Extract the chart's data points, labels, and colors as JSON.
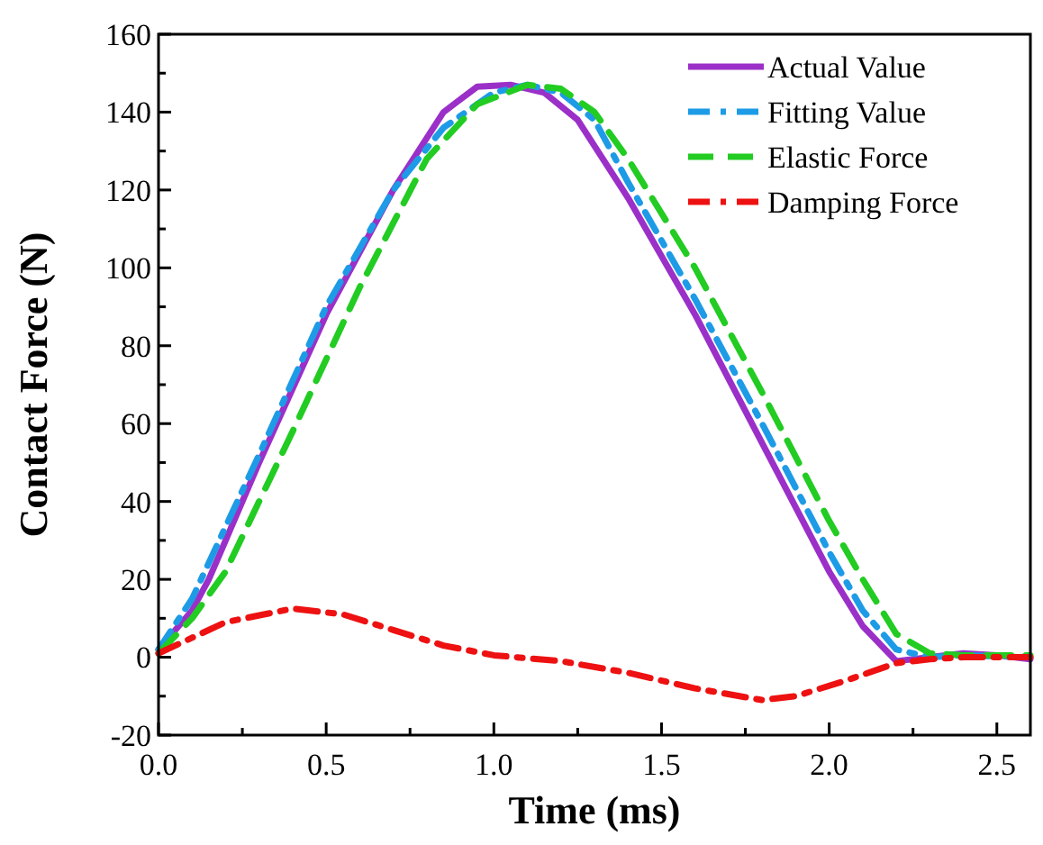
{
  "chart_data": {
    "type": "line",
    "xlabel": "Time (ms)",
    "ylabel": "Contact Force (N)",
    "xlim": [
      0,
      2.6
    ],
    "ylim": [
      -20,
      160
    ],
    "xticks": [
      {
        "value": 0,
        "label": "0.0"
      },
      {
        "value": 0.25,
        "label": null
      },
      {
        "value": 0.5,
        "label": "0.5"
      },
      {
        "value": 0.75,
        "label": null
      },
      {
        "value": 1,
        "label": "1.0"
      },
      {
        "value": 1.25,
        "label": null
      },
      {
        "value": 1.5,
        "label": "1.5"
      },
      {
        "value": 1.75,
        "label": null
      },
      {
        "value": 2,
        "label": "2.0"
      },
      {
        "value": 2.25,
        "label": null
      },
      {
        "value": 2.5,
        "label": "2.5"
      }
    ],
    "yticks": [
      -20,
      {
        "value": -10,
        "label": null
      },
      0,
      {
        "value": 10,
        "label": null
      },
      20,
      {
        "value": 30,
        "label": null
      },
      40,
      {
        "value": 50,
        "label": null
      },
      60,
      {
        "value": 70,
        "label": null
      },
      80,
      {
        "value": 90,
        "label": null
      },
      100,
      {
        "value": 110,
        "label": null
      },
      120,
      {
        "value": 130,
        "label": null
      },
      140,
      {
        "value": 150,
        "label": null
      },
      160
    ],
    "grid": false,
    "legend": "top right",
    "marker": "none",
    "series": [
      {
        "name": "Actual Value",
        "color": "#9b30c8",
        "line_style": "solid",
        "x": [
          0,
          0.1,
          0.15,
          0.3,
          0.5,
          0.7,
          0.85,
          0.95,
          1.05,
          1.15,
          1.25,
          1.4,
          1.6,
          1.8,
          2.0,
          2.1,
          2.2,
          2.3,
          2.4,
          2.5,
          2.6
        ],
        "values": [
          2,
          12,
          20,
          50,
          88,
          120,
          140,
          146.5,
          147,
          145,
          138,
          118,
          88,
          55,
          22,
          8,
          -1,
          0,
          1,
          0.5,
          -0.5
        ]
      },
      {
        "name": "Fitting Value",
        "color": "#1e9be6",
        "line_style": "dashdot",
        "x": [
          0,
          0.1,
          0.3,
          0.5,
          0.7,
          0.85,
          1.0,
          1.1,
          1.2,
          1.3,
          1.4,
          1.6,
          1.8,
          2.0,
          2.1,
          2.2,
          2.3,
          2.4,
          2.6
        ],
        "values": [
          2,
          15,
          52,
          90,
          120,
          136,
          145,
          147,
          145,
          138,
          122,
          92,
          60,
          27,
          12,
          2,
          0,
          0.5,
          0
        ]
      },
      {
        "name": "Elastic Force",
        "color": "#22cc22",
        "line_style": "dashed",
        "x": [
          0,
          0.1,
          0.2,
          0.4,
          0.6,
          0.8,
          0.95,
          1.1,
          1.2,
          1.3,
          1.4,
          1.6,
          1.8,
          2.0,
          2.1,
          2.2,
          2.3,
          2.4,
          2.6
        ],
        "values": [
          1,
          10,
          22,
          58,
          95,
          128,
          142,
          147,
          146,
          140,
          128,
          100,
          68,
          35,
          20,
          6,
          1,
          0.5,
          0.5
        ]
      },
      {
        "name": "Damping Force",
        "color": "#ee1111",
        "line_style": "dashdot",
        "x": [
          0,
          0.1,
          0.2,
          0.4,
          0.55,
          0.7,
          0.85,
          1.0,
          1.2,
          1.4,
          1.6,
          1.8,
          1.9,
          2.05,
          2.2,
          2.3,
          2.4,
          2.6
        ],
        "values": [
          1,
          5,
          9,
          12.5,
          11,
          7,
          3,
          0.5,
          -1,
          -4,
          -8,
          -11,
          -10,
          -6,
          -1.5,
          -0.5,
          0,
          0
        ]
      }
    ]
  }
}
